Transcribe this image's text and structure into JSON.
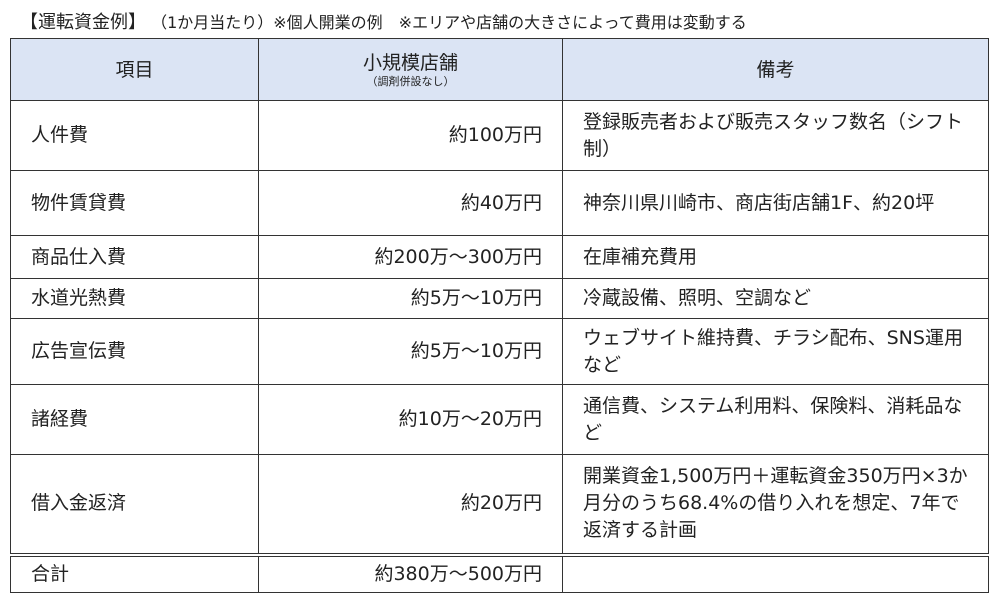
{
  "title": {
    "main": "【運転資金例】",
    "note": "（1か月当たり）※個人開業の例　※エリアや店舗の大きさによって費用は変動する"
  },
  "table": {
    "headers": [
      {
        "label": "項目"
      },
      {
        "label": "小規模店舗",
        "sub": "（調剤併設なし）"
      },
      {
        "label": "備考"
      }
    ],
    "rows": [
      {
        "item": "人件費",
        "amount": "約100万円",
        "note": "登録販売者および販売スタッフ数名（シフト制）"
      },
      {
        "item": "物件賃貸費",
        "amount": "約40万円",
        "note": "神奈川県川崎市、商店街店舗1F、約20坪"
      },
      {
        "item": "商品仕入費",
        "amount": "約200万～300万円",
        "note": "在庫補充費用"
      },
      {
        "item": "水道光熱費",
        "amount": "約5万～10万円",
        "note": "冷蔵設備、照明、空調など"
      },
      {
        "item": "広告宣伝費",
        "amount": "約5万～10万円",
        "note": "ウェブサイト維持費、チラシ配布、SNS運用など"
      },
      {
        "item": "諸経費",
        "amount": "約10万～20万円",
        "note": "通信費、システム利用料、保険料、消耗品など"
      },
      {
        "item": "借入金返済",
        "amount": "約20万円",
        "note": "開業資金1,500万円＋運転資金350万円×3か月分のうち68.4%の借り入れを想定、7年で返済する計画"
      }
    ],
    "total": {
      "item": "合計",
      "amount": "約380万～500万円",
      "note": ""
    }
  }
}
